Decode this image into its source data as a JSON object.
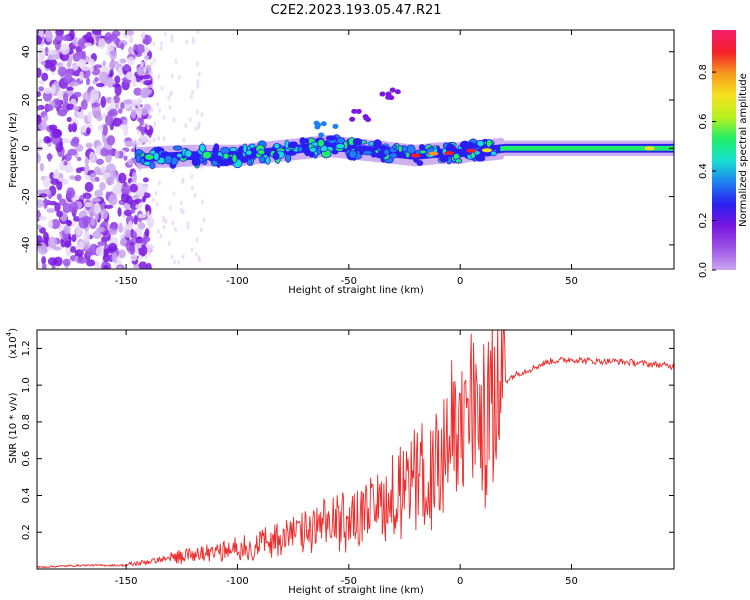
{
  "title": "C2E2.2023.193.05.47.R21",
  "colors": {
    "axis": "#000000",
    "snr_line": "#ee2a2a",
    "colormap": [
      "#ffffff",
      "#e9d9f7",
      "#c9a6f0",
      "#9c55e6",
      "#7a17e0",
      "#2a1ef0",
      "#1e7ff0",
      "#16dfd0",
      "#1eee6a",
      "#b8f01e",
      "#f5e31e",
      "#f59a1e",
      "#f51e2a",
      "#f51e6e"
    ]
  },
  "chart_data": [
    {
      "type": "heatmap",
      "title": "C2E2.2023.193.05.47.R21",
      "xlabel": "Height of straight line (km)",
      "ylabel": "Frequency (Hz)",
      "xlim": [
        -190,
        96
      ],
      "ylim": [
        -50,
        49
      ],
      "xticks": [
        -150,
        -100,
        -50,
        0,
        50
      ],
      "yticks": [
        -40,
        -20,
        0,
        20,
        40
      ],
      "grid": false,
      "description_values": {
        "noise_region_x": [
          -190,
          -145
        ],
        "signal_center_freq_at": [
          [
            -145,
            -4
          ],
          [
            -120,
            -3
          ],
          [
            -100,
            -3
          ],
          [
            -80,
            -1
          ],
          [
            -60,
            1
          ],
          [
            -40,
            -1
          ],
          [
            -20,
            -3
          ],
          [
            -10,
            -2
          ],
          [
            0,
            -2
          ],
          [
            5,
            -1
          ],
          [
            10,
            -1
          ],
          [
            20,
            0
          ],
          [
            50,
            0
          ],
          [
            96,
            0
          ]
        ],
        "branch": [
          [
            -60,
            8
          ],
          [
            -45,
            14
          ],
          [
            -30,
            22
          ]
        ]
      },
      "colorbar": {
        "label": "Normalized spectral amplitude",
        "range": [
          0,
          0.97
        ],
        "ticks": [
          0.0,
          0.2,
          0.4,
          0.6,
          0.8
        ]
      }
    },
    {
      "type": "line",
      "xlabel": "Height of straight line (km)",
      "ylabel": "SNR (10 * v/v)",
      "y_multiplier_label": "(x10",
      "y_multiplier_exp": "4",
      "y_multiplier_close": ")",
      "xlim": [
        -190,
        96
      ],
      "ylim": [
        0,
        1.3
      ],
      "xticks": [
        -150,
        -100,
        -50,
        0,
        50
      ],
      "yticks": [
        0.2,
        0.4,
        0.6,
        0.8,
        1.0,
        1.2
      ],
      "grid": false,
      "series": [
        {
          "x": [
            -190,
            -170,
            -150,
            -140,
            -130,
            -120,
            -110,
            -100,
            -90,
            -80,
            -70,
            -60,
            -50,
            -40,
            -30,
            -25,
            -20,
            -15,
            -10,
            -5,
            0,
            5,
            10,
            15,
            20,
            25,
            30,
            40,
            50,
            60,
            70,
            80,
            90,
            96
          ],
          "y": [
            0.01,
            0.02,
            0.02,
            0.04,
            0.06,
            0.08,
            0.09,
            0.11,
            0.14,
            0.17,
            0.2,
            0.24,
            0.28,
            0.32,
            0.38,
            0.42,
            0.46,
            0.5,
            0.58,
            0.68,
            0.78,
            0.85,
            0.8,
            0.95,
            1.02,
            1.06,
            1.08,
            1.13,
            1.14,
            1.13,
            1.13,
            1.12,
            1.11,
            1.1
          ]
        }
      ]
    }
  ]
}
